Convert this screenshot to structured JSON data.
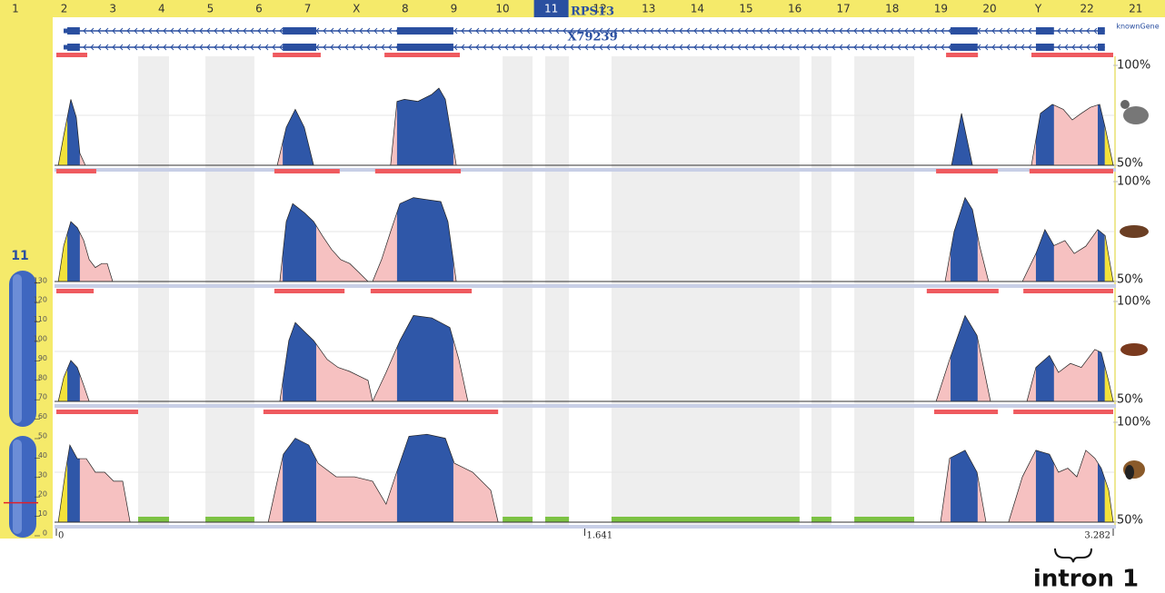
{
  "chart_data": {
    "type": "ecr-profile",
    "chromosomes": [
      "1",
      "2",
      "3",
      "4",
      "5",
      "6",
      "7",
      "X",
      "8",
      "9",
      "10",
      "11",
      "12",
      "13",
      "14",
      "15",
      "16",
      "17",
      "18",
      "19",
      "20",
      "Y",
      "22",
      "21"
    ],
    "selected_chromosome": "11",
    "ideogram": {
      "label": "11",
      "ticks": [
        130,
        120,
        110,
        100,
        90,
        80,
        70,
        60,
        50,
        40,
        30,
        20,
        10,
        0
      ],
      "locus": 17
    },
    "gene_track_label": "knownGene",
    "genes": [
      {
        "name": "RPS13",
        "span": [
          0,
          3256
        ],
        "exons": [
          [
            34,
            73
          ],
          [
            703,
            807
          ],
          [
            1058,
            1233
          ],
          [
            2777,
            2861
          ],
          [
            3042,
            3098
          ],
          [
            3234,
            3256
          ]
        ]
      },
      {
        "name": "X79239",
        "span": [
          0,
          3256
        ],
        "exons": [
          [
            34,
            73
          ],
          [
            703,
            807
          ],
          [
            1058,
            1233
          ],
          [
            2777,
            2861
          ],
          [
            3042,
            3098
          ],
          [
            3234,
            3256
          ]
        ]
      }
    ],
    "exons": [
      [
        34,
        73
      ],
      [
        703,
        807
      ],
      [
        1058,
        1233
      ],
      [
        2777,
        2861
      ],
      [
        3042,
        3098
      ],
      [
        3234,
        3256
      ]
    ],
    "utrs": [
      [
        0,
        34
      ],
      [
        3256,
        3282
      ]
    ],
    "repeats": [
      [
        254,
        350
      ],
      [
        463,
        615
      ],
      [
        1386,
        1479
      ],
      [
        1518,
        1592
      ],
      [
        1724,
        2308
      ],
      [
        2345,
        2407
      ],
      [
        2478,
        2664
      ]
    ],
    "xlim": [
      0,
      3282
    ],
    "xticks": [
      {
        "value": 0,
        "label": "0"
      },
      {
        "value": 1641,
        "label": "1.641"
      },
      {
        "value": 3282,
        "label": "3.282"
      }
    ],
    "tracks": [
      {
        "ylim": [
          50,
          100
        ],
        "yticks": [
          {
            "value": 100,
            "label": "100%"
          },
          {
            "value": 50,
            "label": "50%"
          }
        ],
        "ecrs": [
          [
            0,
            96
          ],
          [
            672,
            821
          ],
          [
            1019,
            1253
          ],
          [
            2763,
            2862
          ],
          [
            3028,
            3282
          ]
        ],
        "peaks": [
          [
            [
              6,
              50
            ],
            [
              23,
              65
            ],
            [
              45,
              83
            ],
            [
              62,
              74
            ],
            [
              73,
              56
            ],
            [
              90,
              50
            ]
          ],
          [
            [
              686,
              50
            ],
            [
              714,
              69
            ],
            [
              742,
              78
            ],
            [
              770,
              69
            ],
            [
              799,
              50
            ]
          ],
          [
            [
              1038,
              50
            ],
            [
              1058,
              82
            ],
            [
              1081,
              83
            ],
            [
              1123,
              82
            ],
            [
              1166,
              85.5
            ],
            [
              1188,
              88.6
            ],
            [
              1208,
              83
            ],
            [
              1242,
              50
            ]
          ],
          [
            [
              2780,
              50
            ],
            [
              2811,
              76
            ],
            [
              2845,
              50
            ]
          ],
          [
            [
              3028,
              50
            ],
            [
              3056,
              76
            ],
            [
              3093,
              80.5
            ],
            [
              3127,
              78
            ],
            [
              3155,
              72.7
            ],
            [
              3183,
              76
            ],
            [
              3211,
              79
            ],
            [
              3240,
              80.5
            ],
            [
              3257,
              69
            ],
            [
              3282,
              50
            ]
          ]
        ]
      },
      {
        "ylim": [
          50,
          100
        ],
        "yticks": [
          {
            "value": 100,
            "label": "100%"
          },
          {
            "value": 50,
            "label": "50%"
          }
        ],
        "ecrs": [
          [
            0,
            124
          ],
          [
            677,
            880
          ],
          [
            990,
            1256
          ],
          [
            2732,
            2924
          ],
          [
            3022,
            3282
          ]
        ],
        "peaks": [
          [
            [
              6,
              50
            ],
            [
              23,
              68
            ],
            [
              45,
              80
            ],
            [
              65,
              77
            ],
            [
              85,
              70.5
            ],
            [
              102,
              61
            ],
            [
              121,
              57
            ],
            [
              141,
              59
            ],
            [
              158,
              59
            ],
            [
              175,
              50
            ]
          ],
          [
            [
              694,
              50
            ],
            [
              714,
              80
            ],
            [
              734,
              89
            ],
            [
              770,
              84.5
            ],
            [
              799,
              80
            ],
            [
              827,
              72.7
            ],
            [
              855,
              66
            ],
            [
              883,
              61
            ],
            [
              911,
              59
            ],
            [
              940,
              54.5
            ],
            [
              968,
              50
            ]
          ],
          [
            [
              982,
              50
            ],
            [
              1010,
              61
            ],
            [
              1038,
              75
            ],
            [
              1067,
              89
            ],
            [
              1109,
              92
            ],
            [
              1151,
              91
            ],
            [
              1194,
              90
            ],
            [
              1216,
              80
            ],
            [
              1242,
              50
            ]
          ],
          [
            [
              2760,
              50
            ],
            [
              2788,
              75
            ],
            [
              2822,
              92
            ],
            [
              2845,
              86
            ],
            [
              2867,
              68
            ],
            [
              2895,
              50
            ]
          ],
          [
            [
              3000,
              50
            ],
            [
              3042,
              64
            ],
            [
              3070,
              76
            ],
            [
              3098,
              68
            ],
            [
              3132,
              70.5
            ],
            [
              3161,
              64
            ],
            [
              3197,
              67.7
            ],
            [
              3234,
              76
            ],
            [
              3257,
              73
            ],
            [
              3282,
              50
            ]
          ]
        ]
      },
      {
        "ylim": [
          50,
          100
        ],
        "yticks": [
          {
            "value": 100,
            "label": "100%"
          },
          {
            "value": 50,
            "label": "50%"
          }
        ],
        "ecrs": [
          [
            0,
            116
          ],
          [
            677,
            895
          ],
          [
            976,
            1290
          ],
          [
            2703,
            2926
          ],
          [
            3003,
            3282
          ]
        ],
        "peaks": [
          [
            [
              6,
              50
            ],
            [
              23,
              62
            ],
            [
              45,
              70.5
            ],
            [
              65,
              67
            ],
            [
              85,
              58
            ],
            [
              102,
              50
            ]
          ],
          [
            [
              694,
              50
            ],
            [
              722,
              80.5
            ],
            [
              742,
              89.5
            ],
            [
              770,
              85
            ],
            [
              799,
              80.5
            ],
            [
              841,
              71
            ],
            [
              875,
              67
            ],
            [
              911,
              65
            ],
            [
              940,
              62.7
            ],
            [
              968,
              60.5
            ],
            [
              982,
              50
            ]
          ],
          [
            [
              982,
              50
            ],
            [
              1024,
              64.5
            ],
            [
              1067,
              80.5
            ],
            [
              1109,
              93
            ],
            [
              1166,
              91.8
            ],
            [
              1222,
              87
            ],
            [
              1250,
              71
            ],
            [
              1278,
              50
            ]
          ],
          [
            [
              2732,
              50
            ],
            [
              2774,
              71
            ],
            [
              2822,
              93
            ],
            [
              2859,
              83
            ],
            [
              2901,
              50
            ]
          ],
          [
            [
              3014,
              50
            ],
            [
              3042,
              67
            ],
            [
              3084,
              73
            ],
            [
              3112,
              64.5
            ],
            [
              3149,
              69
            ],
            [
              3183,
              67
            ],
            [
              3225,
              76
            ],
            [
              3245,
              74.5
            ],
            [
              3268,
              60
            ],
            [
              3282,
              50
            ]
          ]
        ]
      },
      {
        "ylim": [
          50,
          100
        ],
        "yticks": [
          {
            "value": 100,
            "label": "100%"
          },
          {
            "value": 50,
            "label": "50%"
          }
        ],
        "ecrs": [
          [
            0,
            254
          ],
          [
            643,
            1372
          ],
          [
            2726,
            2924
          ],
          [
            2972,
            3282
          ]
        ],
        "peaks": [
          [
            [
              6,
              50
            ],
            [
              28,
              75
            ],
            [
              42,
              88.6
            ],
            [
              65,
              81.8
            ],
            [
              93,
              81.8
            ],
            [
              121,
              75
            ],
            [
              150,
              75
            ],
            [
              178,
              70.5
            ],
            [
              206,
              70.5
            ],
            [
              229,
              50
            ]
          ],
          [
            [
              658,
              50
            ],
            [
              686,
              70.5
            ],
            [
              705,
              84
            ],
            [
              742,
              92
            ],
            [
              784,
              88.6
            ],
            [
              813,
              79.5
            ],
            [
              869,
              72.7
            ],
            [
              926,
              72.7
            ],
            [
              982,
              70.5
            ],
            [
              1024,
              59
            ],
            [
              1052,
              72.7
            ],
            [
              1095,
              93
            ],
            [
              1151,
              94
            ],
            [
              1208,
              92
            ],
            [
              1236,
              79.5
            ],
            [
              1293,
              75
            ],
            [
              1349,
              66
            ],
            [
              1372,
              50
            ]
          ],
          [
            [
              2746,
              50
            ],
            [
              2774,
              82
            ],
            [
              2822,
              86
            ],
            [
              2859,
              75
            ],
            [
              2887,
              50
            ]
          ],
          [
            [
              2957,
              50
            ],
            [
              3000,
              72.7
            ],
            [
              3042,
              86
            ],
            [
              3084,
              84
            ],
            [
              3112,
              75
            ],
            [
              3141,
              77
            ],
            [
              3169,
              72.7
            ],
            [
              3197,
              86
            ],
            [
              3225,
              82
            ],
            [
              3245,
              77
            ],
            [
              3268,
              66
            ],
            [
              3282,
              50
            ]
          ]
        ]
      }
    ],
    "annotation": "intron 1"
  }
}
